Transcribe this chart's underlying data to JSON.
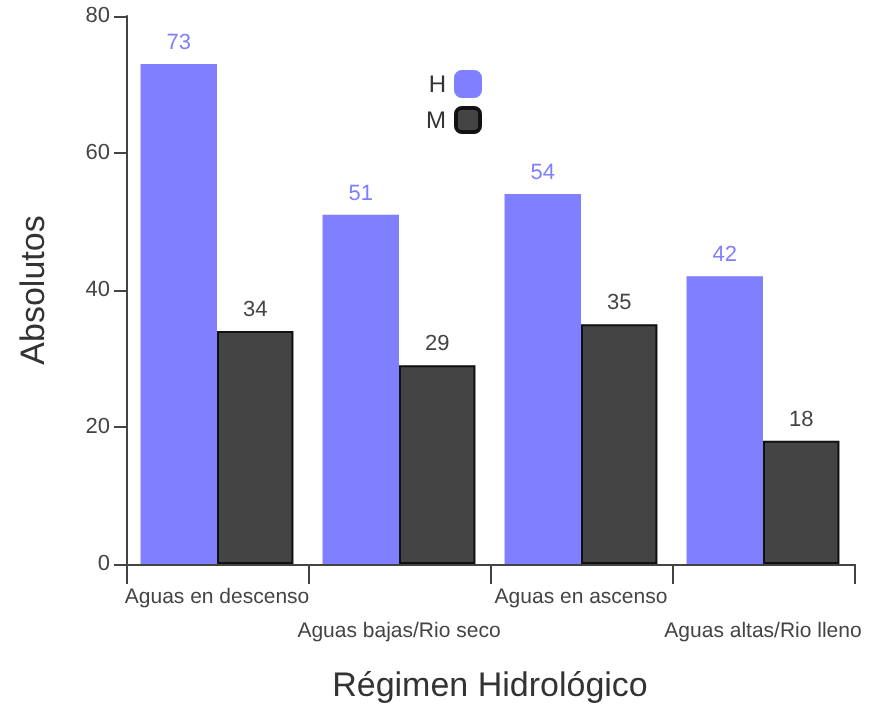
{
  "chart_data": {
    "type": "bar",
    "xlabel": "Régimen Hidrológico",
    "ylabel": "Absolutos",
    "categories": [
      "Aguas en descenso",
      "Aguas bajas/Rio seco",
      "Aguas en ascenso",
      "Aguas altas/Rio lleno"
    ],
    "series": [
      {
        "name": "H",
        "color": "#7f7fff",
        "values": [
          73,
          51,
          54,
          42
        ]
      },
      {
        "name": "M",
        "color": "#444444",
        "values": [
          34,
          29,
          35,
          18
        ]
      }
    ],
    "ylim": [
      0,
      80
    ],
    "yticks": [
      0,
      20,
      40,
      60,
      80
    ],
    "grid": false,
    "legend": "top",
    "data_labels": true
  }
}
